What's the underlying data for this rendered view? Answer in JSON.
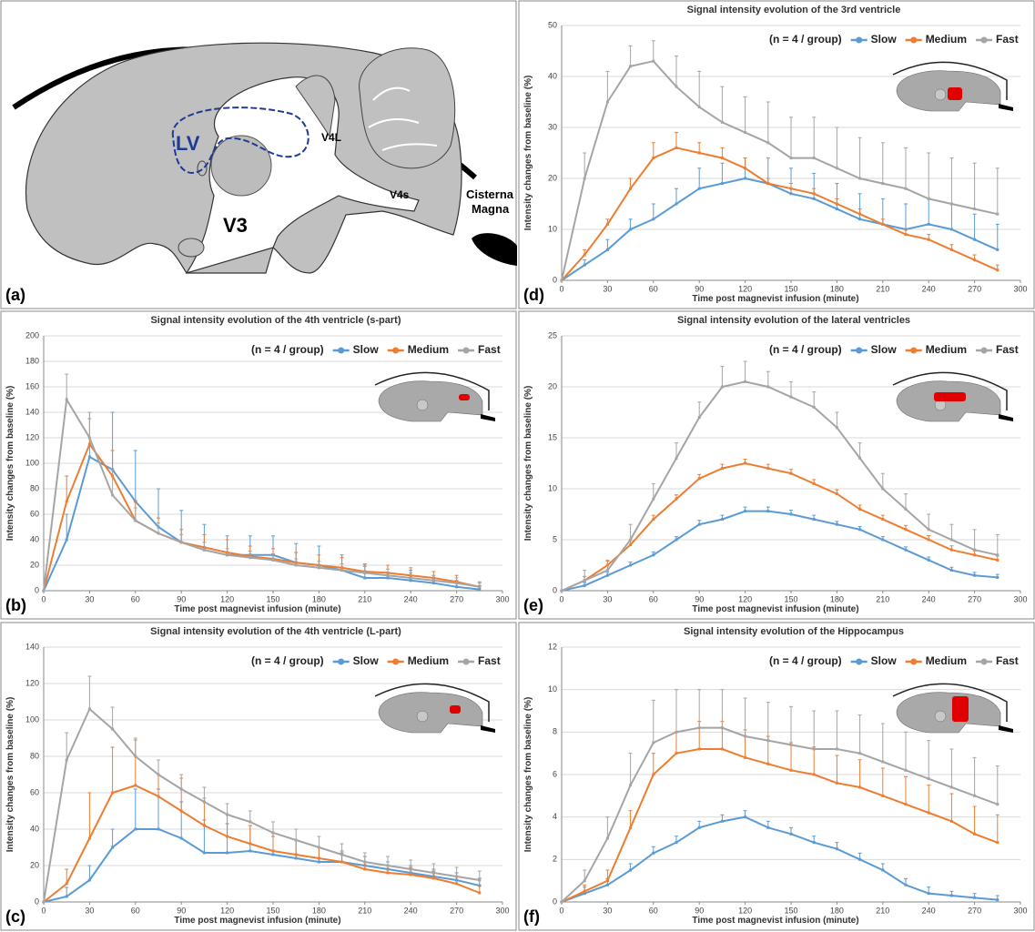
{
  "diagram": {
    "panel_label": "(a)",
    "labels": {
      "lv": "LV",
      "v3": "V3",
      "v4l": "V4L",
      "v4s": "V4s",
      "cisterna": [
        "Cisterna",
        "Magna"
      ]
    }
  },
  "chart_data": [
    {
      "type": "line",
      "panel_label": "(b)",
      "title": "Signal  intensity evolution of the 4th ventricle (s-part)",
      "annotation": "(n = 4 / group)",
      "x_label": "Time post magnevist infusion (minute)",
      "y_label": "Intensity changes from baseline (%)",
      "x": [
        0,
        15,
        30,
        45,
        60,
        75,
        90,
        105,
        120,
        135,
        150,
        165,
        180,
        195,
        210,
        225,
        240,
        255,
        270,
        285
      ],
      "xlim": [
        0,
        300
      ],
      "xticks": [
        0,
        30,
        60,
        90,
        120,
        150,
        180,
        210,
        240,
        270,
        300
      ],
      "ylim": [
        0,
        200
      ],
      "yticks": [
        0,
        20,
        40,
        60,
        80,
        100,
        120,
        140,
        160,
        180,
        200
      ],
      "grid": true,
      "series": [
        {
          "name": "Slow",
          "color": "#5b9bd5",
          "values": [
            0,
            40,
            105,
            95,
            70,
            50,
            38,
            32,
            28,
            28,
            28,
            22,
            20,
            16,
            10,
            10,
            8,
            6,
            3,
            1
          ],
          "errors": [
            0,
            20,
            30,
            45,
            40,
            30,
            25,
            20,
            15,
            15,
            15,
            15,
            15,
            12,
            10,
            10,
            8,
            6,
            5,
            3
          ]
        },
        {
          "name": "Medium",
          "color": "#ed7d31",
          "values": [
            0,
            70,
            115,
            90,
            55,
            45,
            38,
            34,
            30,
            27,
            25,
            22,
            20,
            18,
            15,
            14,
            12,
            10,
            7,
            3
          ],
          "errors": [
            0,
            20,
            25,
            20,
            15,
            12,
            10,
            10,
            10,
            8,
            8,
            8,
            8,
            8,
            6,
            6,
            6,
            5,
            5,
            4
          ]
        },
        {
          "name": "Fast",
          "color": "#a5a5a5",
          "values": [
            0,
            150,
            120,
            75,
            55,
            45,
            38,
            32,
            28,
            26,
            24,
            20,
            18,
            16,
            14,
            12,
            10,
            8,
            6,
            3
          ],
          "errors": [
            0,
            20,
            20,
            20,
            10,
            8,
            6,
            6,
            5,
            5,
            5,
            5,
            5,
            5,
            5,
            5,
            4,
            4,
            4,
            3
          ]
        }
      ]
    },
    {
      "type": "line",
      "panel_label": "(c)",
      "title": "Signal  intensity evolution of the 4th ventricle (L-part)",
      "annotation": "(n = 4 / group)",
      "x_label": "Time post magnevist infusion (minute)",
      "y_label": "Intensity changes from baseline (%)",
      "x": [
        0,
        15,
        30,
        45,
        60,
        75,
        90,
        105,
        120,
        135,
        150,
        165,
        180,
        195,
        210,
        225,
        240,
        255,
        270,
        285
      ],
      "xlim": [
        0,
        300
      ],
      "xticks": [
        0,
        30,
        60,
        90,
        120,
        150,
        180,
        210,
        240,
        270,
        300
      ],
      "ylim": [
        0,
        140
      ],
      "yticks": [
        0,
        20,
        40,
        60,
        80,
        100,
        120,
        140
      ],
      "grid": true,
      "series": [
        {
          "name": "Slow",
          "color": "#5b9bd5",
          "values": [
            0,
            3,
            12,
            30,
            40,
            40,
            35,
            27,
            27,
            28,
            26,
            24,
            22,
            22,
            20,
            18,
            16,
            14,
            12,
            9
          ],
          "errors": [
            0,
            5,
            8,
            10,
            22,
            22,
            20,
            18,
            16,
            14,
            12,
            10,
            8,
            6,
            5,
            4,
            4,
            4,
            4,
            4
          ]
        },
        {
          "name": "Medium",
          "color": "#ed7d31",
          "values": [
            0,
            10,
            35,
            60,
            64,
            58,
            50,
            42,
            36,
            32,
            28,
            26,
            24,
            22,
            18,
            16,
            15,
            13,
            10,
            5
          ],
          "errors": [
            0,
            8,
            25,
            25,
            25,
            20,
            18,
            15,
            12,
            10,
            8,
            8,
            6,
            5,
            4,
            4,
            4,
            4,
            4,
            4
          ]
        },
        {
          "name": "Fast",
          "color": "#a5a5a5",
          "values": [
            0,
            78,
            106,
            95,
            80,
            70,
            62,
            55,
            48,
            44,
            38,
            34,
            30,
            26,
            22,
            20,
            18,
            16,
            14,
            12
          ],
          "errors": [
            0,
            15,
            18,
            12,
            10,
            8,
            8,
            8,
            6,
            6,
            6,
            6,
            6,
            6,
            5,
            5,
            5,
            5,
            5,
            5
          ]
        }
      ]
    },
    {
      "type": "line",
      "panel_label": "(d)",
      "title": "Signal  intensity evolution of the 3rd ventricle",
      "annotation": "(n = 4 / group)",
      "x_label": "Time post magnevist infusion (minute)",
      "y_label": "Intensity changes from baseline (%)",
      "x": [
        0,
        15,
        30,
        45,
        60,
        75,
        90,
        105,
        120,
        135,
        150,
        165,
        180,
        195,
        210,
        225,
        240,
        255,
        270,
        285
      ],
      "xlim": [
        0,
        300
      ],
      "xticks": [
        0,
        30,
        60,
        90,
        120,
        150,
        180,
        210,
        240,
        270,
        300
      ],
      "ylim": [
        0,
        50
      ],
      "yticks": [
        0,
        10,
        20,
        30,
        40,
        50
      ],
      "grid": true,
      "series": [
        {
          "name": "Slow",
          "color": "#5b9bd5",
          "values": [
            0,
            3,
            6,
            10,
            12,
            15,
            18,
            19,
            20,
            19,
            17,
            16,
            14,
            12,
            11,
            10,
            11,
            10,
            8,
            6
          ],
          "errors": [
            0,
            1,
            2,
            2,
            3,
            3,
            4,
            4,
            4,
            5,
            5,
            5,
            5,
            5,
            5,
            5,
            5,
            5,
            5,
            5
          ]
        },
        {
          "name": "Medium",
          "color": "#ed7d31",
          "values": [
            0,
            5,
            11,
            18,
            24,
            26,
            25,
            24,
            22,
            19,
            18,
            17,
            15,
            13,
            11,
            9,
            8,
            6,
            4,
            2
          ],
          "errors": [
            0,
            1,
            1,
            2,
            3,
            3,
            2,
            2,
            2,
            1,
            1,
            1,
            1,
            1,
            1,
            1,
            1,
            1,
            1,
            1
          ]
        },
        {
          "name": "Fast",
          "color": "#a5a5a5",
          "values": [
            0,
            20,
            35,
            42,
            43,
            38,
            34,
            31,
            29,
            27,
            24,
            24,
            22,
            20,
            19,
            18,
            16,
            15,
            14,
            13
          ],
          "errors": [
            0,
            5,
            6,
            4,
            4,
            6,
            7,
            7,
            7,
            8,
            8,
            8,
            8,
            8,
            8,
            8,
            9,
            9,
            9,
            9
          ]
        }
      ]
    },
    {
      "type": "line",
      "panel_label": "(e)",
      "title": "Signal  intensity evolution of the lateral ventricles",
      "annotation": "(n = 4 / group)",
      "x_label": "Time post magnevist infusion (minute)",
      "y_label": "Intensity changes from baseline (%)",
      "x": [
        0,
        15,
        30,
        45,
        60,
        75,
        90,
        105,
        120,
        135,
        150,
        165,
        180,
        195,
        210,
        225,
        240,
        255,
        270,
        285
      ],
      "xlim": [
        0,
        300
      ],
      "xticks": [
        0,
        30,
        60,
        90,
        120,
        150,
        180,
        210,
        240,
        270,
        300
      ],
      "ylim": [
        0,
        25
      ],
      "yticks": [
        0,
        5,
        10,
        15,
        20,
        25
      ],
      "grid": true,
      "series": [
        {
          "name": "Slow",
          "color": "#5b9bd5",
          "values": [
            0,
            0.5,
            1.5,
            2.5,
            3.5,
            5,
            6.5,
            7,
            7.8,
            7.8,
            7.5,
            7,
            6.5,
            6,
            5,
            4,
            3,
            2,
            1.5,
            1.3
          ],
          "errors": [
            0,
            0.3,
            0.3,
            0.3,
            0.3,
            0.3,
            0.4,
            0.4,
            0.4,
            0.4,
            0.4,
            0.4,
            0.3,
            0.3,
            0.3,
            0.3,
            0.3,
            0.3,
            0.3,
            0.3
          ]
        },
        {
          "name": "Medium",
          "color": "#ed7d31",
          "values": [
            0,
            1,
            2.5,
            4.5,
            7,
            9,
            11,
            12,
            12.5,
            12,
            11.5,
            10.5,
            9.5,
            8,
            7,
            6,
            5,
            4,
            3.5,
            3
          ],
          "errors": [
            0,
            0.4,
            0.4,
            0.4,
            0.4,
            0.4,
            0.4,
            0.4,
            0.4,
            0.4,
            0.4,
            0.4,
            0.4,
            0.4,
            0.4,
            0.4,
            0.4,
            0.4,
            0.4,
            0.4
          ]
        },
        {
          "name": "Fast",
          "color": "#a5a5a5",
          "values": [
            0,
            1,
            2,
            5,
            9,
            13,
            17,
            20,
            20.5,
            20,
            19,
            18,
            16,
            13,
            10,
            8,
            6,
            5,
            4,
            3.5
          ],
          "errors": [
            0,
            1,
            1,
            1.5,
            1.5,
            1.5,
            1.5,
            2,
            2,
            1.5,
            1.5,
            1.5,
            1.5,
            1.5,
            1.5,
            1.5,
            1.5,
            1.5,
            2,
            2
          ]
        }
      ]
    },
    {
      "type": "line",
      "panel_label": "(f)",
      "title": "Signal  intensity evolution of the Hippocampus",
      "annotation": "(n = 4 / group)",
      "x_label": "Time post magnevist infusion (minute)",
      "y_label": "Intensity changes from baseline (%)",
      "x": [
        0,
        15,
        30,
        45,
        60,
        75,
        90,
        105,
        120,
        135,
        150,
        165,
        180,
        195,
        210,
        225,
        240,
        255,
        270,
        285
      ],
      "xlim": [
        0,
        300
      ],
      "xticks": [
        0,
        30,
        60,
        90,
        120,
        150,
        180,
        210,
        240,
        270,
        300
      ],
      "ylim": [
        0,
        12
      ],
      "yticks": [
        0,
        2,
        4,
        6,
        8,
        10,
        12
      ],
      "grid": true,
      "series": [
        {
          "name": "Slow",
          "color": "#5b9bd5",
          "values": [
            0,
            0.4,
            0.8,
            1.5,
            2.3,
            2.8,
            3.5,
            3.8,
            4,
            3.5,
            3.2,
            2.8,
            2.5,
            2,
            1.5,
            0.8,
            0.4,
            0.3,
            0.2,
            0.1
          ],
          "errors": [
            0,
            0.3,
            0.3,
            0.3,
            0.3,
            0.3,
            0.3,
            0.3,
            0.3,
            0.3,
            0.3,
            0.3,
            0.3,
            0.3,
            0.3,
            0.3,
            0.3,
            0.2,
            0.2,
            0.2
          ]
        },
        {
          "name": "Medium",
          "color": "#ed7d31",
          "values": [
            0,
            0.5,
            1,
            3.5,
            6,
            7,
            7.2,
            7.2,
            6.8,
            6.5,
            6.2,
            6,
            5.6,
            5.4,
            5,
            4.6,
            4.2,
            3.8,
            3.2,
            2.8
          ],
          "errors": [
            0,
            0.3,
            0.5,
            0.8,
            1,
            1,
            1.3,
            1.3,
            1.3,
            1.3,
            1.3,
            1.3,
            1.3,
            1.3,
            1.3,
            1.3,
            1.3,
            1.3,
            1.3,
            1.3
          ]
        },
        {
          "name": "Fast",
          "color": "#a5a5a5",
          "values": [
            0,
            1,
            3,
            5.5,
            7.5,
            8,
            8.2,
            8.2,
            7.8,
            7.6,
            7.4,
            7.2,
            7.2,
            7,
            6.6,
            6.2,
            5.8,
            5.4,
            5,
            4.6
          ],
          "errors": [
            0,
            0.5,
            1,
            1.5,
            2,
            2,
            1.8,
            1.8,
            1.8,
            1.8,
            1.8,
            1.8,
            1.8,
            1.8,
            1.8,
            1.8,
            1.8,
            1.8,
            1.8,
            1.8
          ]
        }
      ]
    }
  ]
}
